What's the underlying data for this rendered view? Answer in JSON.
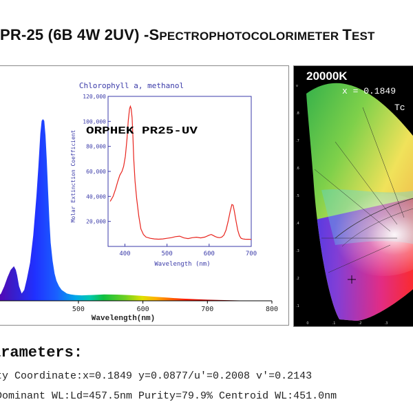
{
  "title": {
    "main": "PR-25 (6B 4W 2UV) -S",
    "small1": "PECTROPHOTOCOLORIMETER ",
    "test_cap": "T",
    "small2": "EST"
  },
  "spectrum": {
    "xlabel": "Wavelength(nm)",
    "x_ticks": [
      "500",
      "600",
      "700",
      "800"
    ],
    "xlim": [
      372,
      800
    ],
    "product_label": "ORPHEK PR25-UV",
    "colors": {
      "axis": "#000000",
      "label": "#222222"
    }
  },
  "inset": {
    "title": "Chlorophyll a, methanol",
    "xlabel": "Wavelength (nm)",
    "ylabel": "Molar Extinction Coefficient",
    "x_ticks": [
      "400",
      "500",
      "600",
      "700"
    ],
    "y_ticks": [
      "20,000",
      "40,000",
      "60,000",
      "80,000",
      "100,000",
      "120,000"
    ],
    "colors": {
      "line": "#e8231c",
      "axis": "#3a3aa8",
      "text": "#3a3aa8"
    }
  },
  "cie": {
    "cct_label": "20000K",
    "x_readout": "x = 0.1849",
    "tc_label": "Tc",
    "left_ticks": [
      "v",
      ".8",
      ".7",
      ".6",
      ".5",
      ".4",
      ".3",
      ".2",
      ".1"
    ],
    "bottom_ticks": [
      "0",
      ".1",
      ".2",
      ".3"
    ]
  },
  "parameters": {
    "heading": "arameters:",
    "line1": "ty Coordinate:x=0.1849   y=0.0877/u'=0.2008   v'=0.2143",
    "line2": "  Dominant WL:Ld=457.5nm  Purity=79.9% Centroid WL:451.0nm"
  },
  "chart_data": [
    {
      "type": "area",
      "title": "",
      "xlabel": "Wavelength(nm)",
      "ylabel": "",
      "xlim": [
        372,
        800
      ],
      "ylim": [
        0,
        1
      ],
      "series": [
        {
          "x": [
            372,
            380,
            385,
            390,
            395,
            400,
            403,
            405,
            408,
            412,
            416,
            420,
            425,
            430,
            435,
            438,
            441,
            443,
            445,
            447,
            449,
            451,
            453,
            455,
            457,
            460,
            463,
            466,
            470,
            474,
            478,
            482,
            488,
            495,
            505,
            520,
            540,
            560,
            580,
            600,
            620,
            640,
            660,
            680,
            700,
            720,
            750,
            800
          ],
          "values": [
            0.01,
            0.04,
            0.08,
            0.13,
            0.17,
            0.19,
            0.17,
            0.14,
            0.08,
            0.04,
            0.06,
            0.12,
            0.21,
            0.36,
            0.58,
            0.74,
            0.92,
            0.99,
            1.0,
            0.99,
            0.91,
            0.77,
            0.6,
            0.44,
            0.32,
            0.22,
            0.15,
            0.11,
            0.08,
            0.06,
            0.05,
            0.04,
            0.035,
            0.032,
            0.03,
            0.032,
            0.035,
            0.034,
            0.031,
            0.027,
            0.022,
            0.017,
            0.012,
            0.009,
            0.006,
            0.004,
            0.002,
            0.0
          ]
        }
      ]
    },
    {
      "type": "line",
      "title": "Chlorophyll a, methanol",
      "xlabel": "Wavelength (nm)",
      "ylabel": "Molar Extinction Coefficient",
      "xlim": [
        360,
        700
      ],
      "ylim": [
        0,
        120000
      ],
      "series": [
        {
          "x": [
            365,
            372,
            378,
            383,
            388,
            393,
            397,
            401,
            405,
            408,
            411,
            413,
            415,
            417,
            419,
            421,
            424,
            428,
            433,
            438,
            444,
            450,
            460,
            470,
            480,
            490,
            500,
            510,
            520,
            530,
            540,
            550,
            560,
            570,
            580,
            590,
            600,
            605,
            610,
            615,
            620,
            625,
            630,
            635,
            640,
            645,
            650,
            654,
            657,
            660,
            664,
            668,
            672,
            676,
            680,
            685,
            690,
            695,
            700
          ],
          "values": [
            36000,
            40000,
            46000,
            52000,
            57000,
            60000,
            64000,
            72000,
            86000,
            101000,
            110000,
            112000,
            110000,
            103000,
            88000,
            70000,
            52000,
            38000,
            24000,
            14000,
            9500,
            7500,
            6500,
            6000,
            5800,
            6000,
            6500,
            7000,
            7800,
            8200,
            6800,
            6300,
            7000,
            7400,
            6800,
            7500,
            9000,
            9600,
            8700,
            7800,
            7200,
            7000,
            7500,
            9000,
            13000,
            20000,
            28000,
            33500,
            33000,
            28000,
            20000,
            13000,
            8500,
            6500,
            6000,
            5800,
            5700,
            5700,
            5600
          ]
        }
      ]
    }
  ]
}
